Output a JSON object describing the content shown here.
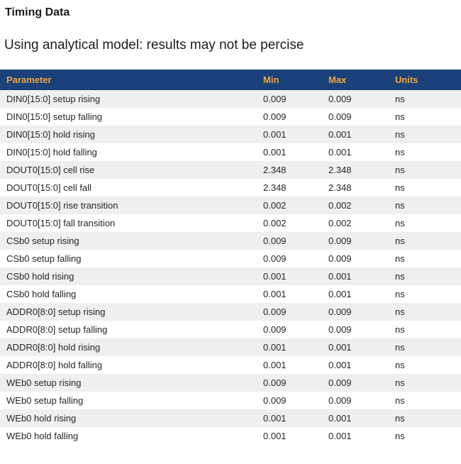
{
  "page": {
    "title": "Timing Data",
    "subtitle": "Using analytical model: results may not be percise"
  },
  "table": {
    "columns": [
      "Parameter",
      "Min",
      "Max",
      "Units"
    ],
    "rows": [
      [
        "DIN0[15:0] setup rising",
        "0.009",
        "0.009",
        "ns"
      ],
      [
        "DIN0[15:0] setup falling",
        "0.009",
        "0.009",
        "ns"
      ],
      [
        "DIN0[15:0] hold rising",
        "0.001",
        "0.001",
        "ns"
      ],
      [
        "DIN0[15:0] hold falling",
        "0.001",
        "0.001",
        "ns"
      ],
      [
        "DOUT0[15:0] cell rise",
        "2.348",
        "2.348",
        "ns"
      ],
      [
        "DOUT0[15:0] cell fall",
        "2.348",
        "2.348",
        "ns"
      ],
      [
        "DOUT0[15:0] rise transition",
        "0.002",
        "0.002",
        "ns"
      ],
      [
        "DOUT0[15:0] fall transition",
        "0.002",
        "0.002",
        "ns"
      ],
      [
        "CSb0 setup rising",
        "0.009",
        "0.009",
        "ns"
      ],
      [
        "CSb0 setup falling",
        "0.009",
        "0.009",
        "ns"
      ],
      [
        "CSb0 hold rising",
        "0.001",
        "0.001",
        "ns"
      ],
      [
        "CSb0 hold falling",
        "0.001",
        "0.001",
        "ns"
      ],
      [
        "ADDR0[8:0] setup rising",
        "0.009",
        "0.009",
        "ns"
      ],
      [
        "ADDR0[8:0] setup falling",
        "0.009",
        "0.009",
        "ns"
      ],
      [
        "ADDR0[8:0] hold rising",
        "0.001",
        "0.001",
        "ns"
      ],
      [
        "ADDR0[8:0] hold falling",
        "0.001",
        "0.001",
        "ns"
      ],
      [
        "WEb0 setup rising",
        "0.009",
        "0.009",
        "ns"
      ],
      [
        "WEb0 setup falling",
        "0.009",
        "0.009",
        "ns"
      ],
      [
        "WEb0 hold rising",
        "0.001",
        "0.001",
        "ns"
      ],
      [
        "WEb0 hold falling",
        "0.001",
        "0.001",
        "ns"
      ]
    ]
  },
  "colors": {
    "header_bg": "#1a4179",
    "header_text": "#f0a63e",
    "row_alt_bg": "#efefef",
    "row_text": "#262626",
    "title_text": "#1d1d1d"
  }
}
